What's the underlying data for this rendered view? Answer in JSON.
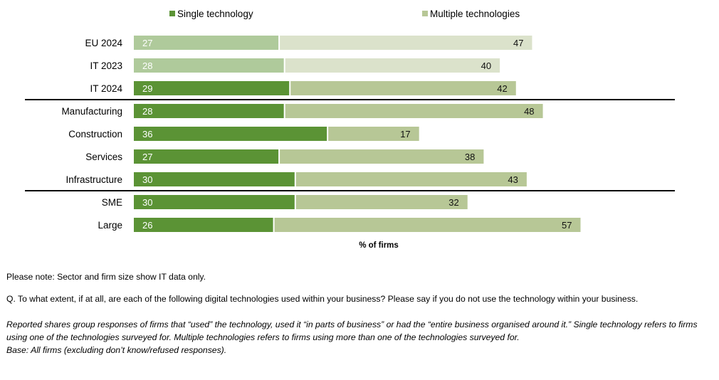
{
  "chart_data": {
    "type": "bar",
    "orientation": "horizontal",
    "stacked": true,
    "categories": [
      "EU 2024",
      "IT 2023",
      "IT 2024",
      "Manufacturing",
      "Construction",
      "Services",
      "Infrastructure",
      "SME",
      "Large"
    ],
    "series": [
      {
        "name": "Single technology",
        "values": [
          27,
          28,
          29,
          28,
          36,
          27,
          30,
          30,
          26
        ]
      },
      {
        "name": "Multiple technologies",
        "values": [
          47,
          40,
          42,
          48,
          17,
          38,
          43,
          32,
          57
        ]
      }
    ],
    "faded_categories": [
      "EU 2024",
      "IT 2023"
    ],
    "xlabel": "% of firms",
    "legend_position": "top",
    "colors": {
      "single": "#5b9335",
      "multiple": "#b7c796",
      "single_faded": "#afca9b",
      "multiple_faded": "#dbe2cb"
    }
  },
  "notes": {
    "line1": "Please note: Sector and firm size show IT data only.",
    "question": "Q. To what extent, if at all, are each of the following digital technologies used within your business? Please say if you do not use the technology within your business.",
    "reported": "Reported shares group responses of firms that “used” the technology, used it “in parts of business” or had the “entire business organised around it.” Single technology refers to firms using one of the technologies surveyed for. Multiple technologies refers to firms using more than one of the technologies surveyed for.",
    "base": "Base: All firms (excluding don’t know/refused responses)."
  }
}
